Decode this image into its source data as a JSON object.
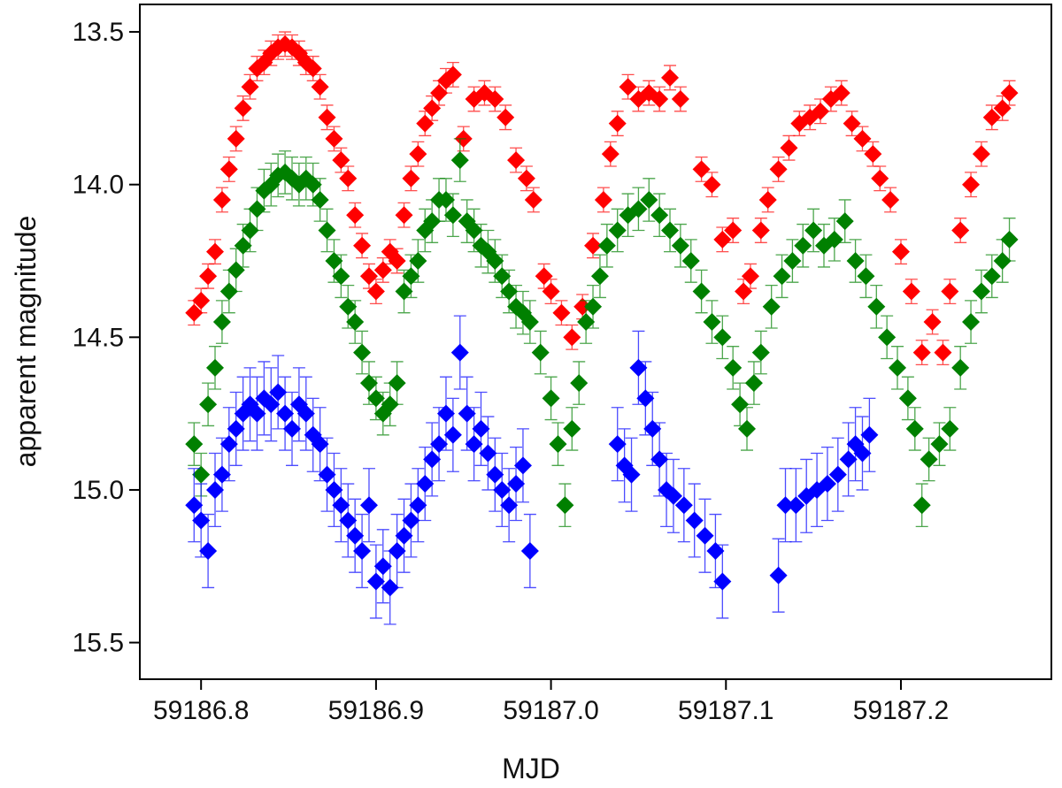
{
  "chart_data": {
    "type": "scatter",
    "xlabel": "MJD",
    "ylabel": "apparent magnitude",
    "xlim": [
      59186.765,
      59187.286
    ],
    "ylim": [
      15.62,
      13.41
    ],
    "xticks": [
      59186.8,
      59186.9,
      {
        "value": 59187,
        "label": "59187.0"
      },
      59187.1,
      59187.2
    ],
    "yticks": [
      13.5,
      {
        "value": 14,
        "label": "14.0"
      },
      14.5,
      {
        "value": 15,
        "label": "15.0"
      },
      15.5
    ],
    "series": [
      {
        "color": "#ff0000",
        "error": 0.04,
        "x": [
          59186.796,
          59186.8,
          59186.804,
          59186.808,
          59186.812,
          59186.816,
          59186.82,
          59186.824,
          59186.828,
          59186.832,
          59186.836,
          59186.84,
          59186.844,
          59186.848,
          59186.852,
          59186.856,
          59186.86,
          59186.864,
          59186.868,
          59186.872,
          59186.876,
          59186.88,
          59186.884,
          59186.888,
          59186.892,
          59186.896,
          59186.9,
          59186.904,
          59186.908,
          59186.912,
          59186.916,
          59186.92,
          59186.924,
          59186.928,
          59186.932,
          59186.936,
          59186.94,
          59186.944,
          59186.95,
          59186.956,
          59186.962,
          59186.968,
          59186.974,
          59186.98,
          59186.986,
          59186.99,
          59186.996,
          59187.0,
          59187.006,
          59187.012,
          59187.018,
          59187.024,
          59187.03,
          59187.034,
          59187.038,
          59187.044,
          59187.05,
          59187.056,
          59187.062,
          59187.068,
          59187.074,
          59187.086,
          59187.092,
          59187.098,
          59187.104,
          59187.11,
          59187.114,
          59187.12,
          59187.124,
          59187.13,
          59187.136,
          59187.142,
          59187.148,
          59187.154,
          59187.16,
          59187.166,
          59187.172,
          59187.178,
          59187.184,
          59187.188,
          59187.194,
          59187.2,
          59187.206,
          59187.212,
          59187.218,
          59187.224,
          59187.228,
          59187.234,
          59187.24,
          59187.246,
          59187.252,
          59187.258,
          59187.262
        ],
        "values": [
          14.42,
          14.38,
          14.3,
          14.22,
          14.05,
          13.95,
          13.85,
          13.75,
          13.68,
          13.62,
          13.6,
          13.57,
          13.55,
          13.54,
          13.55,
          13.57,
          13.6,
          13.62,
          13.68,
          13.78,
          13.85,
          13.92,
          13.98,
          14.1,
          14.2,
          14.3,
          14.35,
          14.28,
          14.22,
          14.25,
          14.1,
          13.98,
          13.9,
          13.8,
          13.75,
          13.7,
          13.66,
          13.64,
          13.85,
          13.72,
          13.7,
          13.72,
          13.78,
          13.92,
          13.98,
          14.05,
          14.3,
          14.35,
          14.42,
          14.5,
          14.4,
          14.2,
          14.05,
          13.9,
          13.8,
          13.68,
          13.72,
          13.7,
          13.72,
          13.65,
          13.72,
          13.95,
          14.0,
          14.18,
          14.15,
          14.35,
          14.3,
          14.15,
          14.05,
          13.95,
          13.88,
          13.8,
          13.78,
          13.76,
          13.72,
          13.7,
          13.8,
          13.85,
          13.9,
          13.98,
          14.05,
          14.22,
          14.35,
          14.55,
          14.45,
          14.55,
          14.35,
          14.15,
          14.0,
          13.9,
          13.78,
          13.75,
          13.7
        ]
      },
      {
        "color": "#008000",
        "error": 0.07,
        "x": [
          59186.796,
          59186.8,
          59186.804,
          59186.808,
          59186.812,
          59186.816,
          59186.82,
          59186.824,
          59186.828,
          59186.832,
          59186.836,
          59186.84,
          59186.844,
          59186.848,
          59186.852,
          59186.856,
          59186.86,
          59186.864,
          59186.868,
          59186.872,
          59186.876,
          59186.88,
          59186.884,
          59186.888,
          59186.892,
          59186.896,
          59186.9,
          59186.904,
          59186.908,
          59186.912,
          59186.916,
          59186.92,
          59186.924,
          59186.928,
          59186.932,
          59186.936,
          59186.94,
          59186.944,
          59186.948,
          59186.952,
          59186.956,
          59186.96,
          59186.964,
          59186.968,
          59186.972,
          59186.976,
          59186.98,
          59186.984,
          59186.988,
          59186.994,
          59187.0,
          59187.004,
          59187.008,
          59187.012,
          59187.016,
          59187.02,
          59187.024,
          59187.028,
          59187.032,
          59187.038,
          59187.044,
          59187.05,
          59187.056,
          59187.062,
          59187.068,
          59187.074,
          59187.08,
          59187.086,
          59187.092,
          59187.098,
          59187.104,
          59187.108,
          59187.112,
          59187.116,
          59187.12,
          59187.126,
          59187.132,
          59187.138,
          59187.144,
          59187.15,
          59187.156,
          59187.162,
          59187.168,
          59187.174,
          59187.18,
          59187.186,
          59187.192,
          59187.198,
          59187.204,
          59187.208,
          59187.212,
          59187.216,
          59187.222,
          59187.228,
          59187.234,
          59187.24,
          59187.246,
          59187.252,
          59187.258,
          59187.262
        ],
        "values": [
          14.85,
          14.95,
          14.72,
          14.6,
          14.45,
          14.35,
          14.28,
          14.2,
          14.15,
          14.08,
          14.02,
          14.0,
          13.97,
          13.96,
          13.98,
          14.0,
          13.98,
          14.0,
          14.05,
          14.15,
          14.25,
          14.3,
          14.4,
          14.45,
          14.55,
          14.65,
          14.7,
          14.75,
          14.72,
          14.65,
          14.35,
          14.3,
          14.25,
          14.15,
          14.12,
          14.05,
          14.05,
          14.1,
          13.92,
          14.12,
          14.15,
          14.2,
          14.22,
          14.25,
          14.3,
          14.35,
          14.4,
          14.42,
          14.45,
          14.55,
          14.7,
          14.85,
          15.05,
          14.8,
          14.65,
          14.45,
          14.4,
          14.3,
          14.2,
          14.15,
          14.1,
          14.08,
          14.05,
          14.1,
          14.15,
          14.2,
          14.25,
          14.35,
          14.45,
          14.5,
          14.6,
          14.72,
          14.8,
          14.65,
          14.55,
          14.4,
          14.3,
          14.25,
          14.2,
          14.15,
          14.2,
          14.18,
          14.12,
          14.25,
          14.3,
          14.4,
          14.5,
          14.6,
          14.7,
          14.8,
          15.05,
          14.9,
          14.85,
          14.8,
          14.6,
          14.45,
          14.35,
          14.3,
          14.25,
          14.18
        ]
      },
      {
        "color": "#0000ff",
        "error": 0.12,
        "x": [
          59186.796,
          59186.8,
          59186.804,
          59186.808,
          59186.812,
          59186.816,
          59186.82,
          59186.824,
          59186.828,
          59186.832,
          59186.836,
          59186.84,
          59186.844,
          59186.848,
          59186.852,
          59186.856,
          59186.86,
          59186.864,
          59186.868,
          59186.872,
          59186.876,
          59186.88,
          59186.884,
          59186.888,
          59186.892,
          59186.896,
          59186.9,
          59186.904,
          59186.908,
          59186.912,
          59186.916,
          59186.92,
          59186.924,
          59186.928,
          59186.932,
          59186.936,
          59186.94,
          59186.944,
          59186.948,
          59186.952,
          59186.956,
          59186.96,
          59186.964,
          59186.968,
          59186.972,
          59186.976,
          59186.98,
          59186.984,
          59186.988,
          59187.038,
          59187.042,
          59187.046,
          59187.05,
          59187.054,
          59187.058,
          59187.062,
          59187.066,
          59187.07,
          59187.076,
          59187.082,
          59187.088,
          59187.094,
          59187.098,
          59187.13,
          59187.134,
          59187.14,
          59187.146,
          59187.152,
          59187.158,
          59187.164,
          59187.17,
          59187.174,
          59187.178,
          59187.182
        ],
        "values": [
          15.05,
          15.1,
          15.2,
          15.0,
          14.95,
          14.85,
          14.8,
          14.75,
          14.72,
          14.75,
          14.7,
          14.72,
          14.68,
          14.75,
          14.8,
          14.72,
          14.75,
          14.82,
          14.85,
          14.95,
          15.0,
          15.05,
          15.1,
          15.15,
          15.2,
          15.05,
          15.3,
          15.25,
          15.32,
          15.2,
          15.15,
          15.1,
          15.05,
          14.98,
          14.9,
          14.85,
          14.75,
          14.82,
          14.55,
          14.75,
          14.85,
          14.8,
          14.88,
          14.95,
          15.0,
          15.05,
          14.98,
          14.92,
          15.2,
          14.85,
          14.92,
          14.95,
          14.6,
          14.7,
          14.8,
          14.9,
          15.0,
          15.02,
          15.05,
          15.1,
          15.15,
          15.2,
          15.3,
          15.28,
          15.05,
          15.05,
          15.02,
          15.0,
          14.98,
          14.95,
          14.9,
          14.85,
          14.88,
          14.82
        ]
      }
    ]
  }
}
